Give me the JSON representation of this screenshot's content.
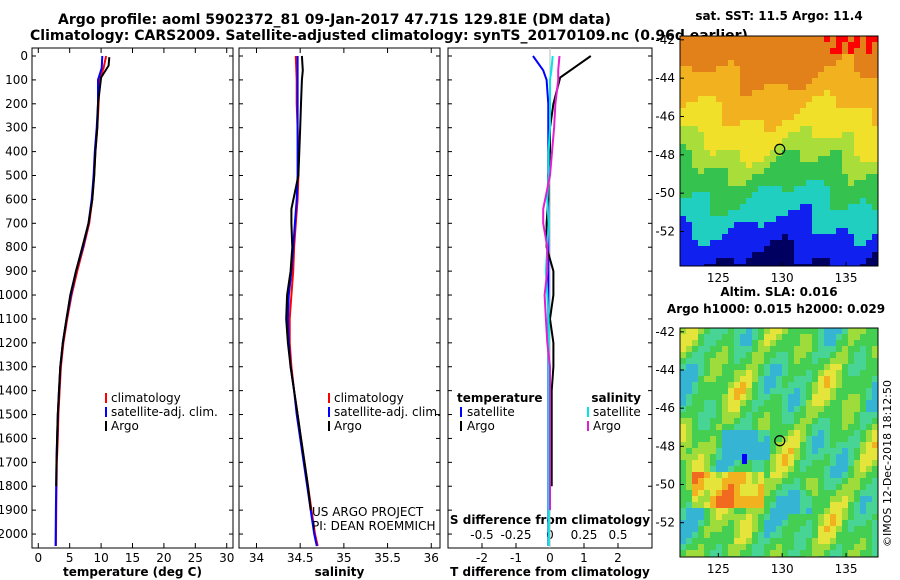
{
  "title": {
    "line1": "Argo profile: aoml 5902372_81 09-Jan-2017 47.71S 129.81E (DM data)",
    "line2": "Climatology: CARS2009. Satellite-adjusted climatology: synTS_20170109.nc (0.96d earlier)"
  },
  "colors": {
    "climatology": "#ff0000",
    "satellite": "#0000ff",
    "argo": "#000000",
    "sal_satellite": "#00e5e5",
    "sal_argo": "#e020d0"
  },
  "chart_data": [
    {
      "type": "line",
      "id": "temperature",
      "title": "",
      "xlabel": "temperature (deg C)",
      "ylabel": "",
      "xlim": [
        -1,
        31
      ],
      "ylim": [
        2060,
        0
      ],
      "xticks": [
        "0",
        "5",
        "10",
        "15",
        "20",
        "25",
        "30"
      ],
      "yticks": [
        "0",
        "100",
        "200",
        "300",
        "400",
        "500",
        "600",
        "700",
        "800",
        "900",
        "1000",
        "1100",
        "1200",
        "1300",
        "1400",
        "1500",
        "1600",
        "1700",
        "1800",
        "1900",
        "2000"
      ],
      "legend": [
        "climatology",
        "satellite-adj. clim.",
        "Argo"
      ],
      "series": [
        {
          "name": "climatology",
          "color_key": "climatology",
          "x": [
            10.8,
            10.4,
            9.7,
            9.6,
            9.4,
            9.1,
            8.9,
            8.6,
            8.1,
            7.2,
            6.2,
            5.3,
            4.6,
            4.0,
            3.6,
            3.4,
            3.2,
            3.1,
            2.95,
            2.9,
            2.85,
            2.8
          ],
          "y": [
            0,
            50,
            100,
            200,
            300,
            400,
            500,
            600,
            700,
            800,
            900,
            1000,
            1100,
            1200,
            1300,
            1400,
            1500,
            1600,
            1700,
            1800,
            1900,
            2050
          ]
        },
        {
          "name": "satellite-adj. clim.",
          "color_key": "satellite",
          "x": [
            10.2,
            10.1,
            9.5,
            9.5,
            9.3,
            9.0,
            8.8,
            8.5,
            8.0,
            7.1,
            6.0,
            5.2,
            4.5,
            3.9,
            3.5,
            3.3,
            3.1,
            3.0,
            2.9,
            2.85,
            2.8,
            2.75
          ],
          "y": [
            0,
            50,
            100,
            200,
            300,
            400,
            500,
            600,
            700,
            800,
            900,
            1000,
            1100,
            1200,
            1300,
            1400,
            1500,
            1600,
            1700,
            1800,
            1900,
            2050
          ]
        },
        {
          "name": "Argo",
          "color_key": "argo",
          "x": [
            11.3,
            11.2,
            10.0,
            9.5,
            9.4,
            9.1,
            8.9,
            8.6,
            8.0,
            7.0,
            6.0,
            5.1,
            4.5,
            3.9,
            3.5,
            3.3,
            3.1,
            3.0,
            2.9,
            2.85
          ],
          "y": [
            5,
            40,
            90,
            200,
            300,
            400,
            500,
            600,
            700,
            800,
            900,
            1000,
            1100,
            1200,
            1300,
            1400,
            1500,
            1600,
            1700,
            1800
          ]
        }
      ]
    },
    {
      "type": "line",
      "id": "salinity",
      "title": "",
      "xlabel": "salinity",
      "ylabel": "",
      "xlim": [
        33.8,
        36.1
      ],
      "ylim": [
        2060,
        0
      ],
      "xticks": [
        "34",
        "34.5",
        "35",
        "35.5",
        "36"
      ],
      "legend": [
        "climatology",
        "satellite-adj. clim.",
        "Argo"
      ],
      "series": [
        {
          "name": "climatology",
          "color_key": "climatology",
          "x": [
            34.45,
            34.46,
            34.46,
            34.47,
            34.48,
            34.48,
            34.47,
            34.45,
            34.43,
            34.42,
            34.4,
            34.38,
            34.38,
            34.4,
            34.43,
            34.47,
            34.51,
            34.55,
            34.59,
            34.63,
            34.67,
            34.7
          ],
          "y": [
            0,
            100,
            200,
            300,
            400,
            500,
            600,
            700,
            800,
            900,
            1000,
            1100,
            1200,
            1300,
            1400,
            1500,
            1600,
            1700,
            1800,
            1900,
            2000,
            2050
          ]
        },
        {
          "name": "satellite-adj. clim.",
          "color_key": "satellite",
          "x": [
            34.47,
            34.47,
            34.47,
            34.47,
            34.47,
            34.47,
            34.46,
            34.44,
            34.42,
            34.4,
            34.37,
            34.36,
            34.37,
            34.39,
            34.43,
            34.46,
            34.5,
            34.54,
            34.58,
            34.62,
            34.66,
            34.69
          ],
          "y": [
            0,
            100,
            200,
            300,
            400,
            500,
            600,
            700,
            800,
            900,
            1000,
            1100,
            1200,
            1300,
            1400,
            1500,
            1600,
            1700,
            1800,
            1900,
            2000,
            2050
          ]
        },
        {
          "name": "Argo",
          "color_key": "argo",
          "x": [
            34.52,
            34.53,
            34.52,
            34.51,
            34.5,
            34.48,
            34.4,
            34.4,
            34.41,
            34.39,
            34.35,
            34.34,
            34.36,
            34.39,
            34.43,
            34.47,
            34.51,
            34.55,
            34.59,
            34.62
          ],
          "y": [
            0,
            60,
            100,
            200,
            300,
            500,
            640,
            700,
            800,
            900,
            1000,
            1100,
            1200,
            1300,
            1400,
            1500,
            1600,
            1700,
            1800,
            1900
          ]
        }
      ]
    },
    {
      "type": "line",
      "id": "difference",
      "title": "S difference from climatology",
      "xlabel": "T difference from climatology",
      "ylabel": "",
      "xlim": [
        -3,
        3
      ],
      "ylim": [
        2060,
        0
      ],
      "xticks": [
        "-2",
        "-1",
        "0",
        "1",
        "2"
      ],
      "top_ticks": [
        "-0.5",
        "-0.25",
        "0",
        "0.25",
        "0.5"
      ],
      "top_xlim": [
        -0.75,
        0.75
      ],
      "legend": [
        "temperature",
        "satellite",
        "Argo",
        "salinity",
        "satellite",
        "Argo"
      ],
      "series": [
        {
          "name": "temperature satellite",
          "color_key": "satellite",
          "x": [
            -0.5,
            -0.2,
            -0.1,
            -0.05,
            -0.05,
            -0.05,
            -0.05,
            -0.05,
            -0.05,
            -0.05,
            -0.05,
            -0.05,
            -0.05,
            -0.05,
            -0.05,
            -0.05,
            -0.05,
            -0.05,
            -0.05
          ],
          "y": [
            0,
            60,
            100,
            200,
            300,
            400,
            500,
            600,
            700,
            800,
            900,
            1000,
            1100,
            1200,
            1300,
            1400,
            1600,
            1800,
            2050
          ]
        },
        {
          "name": "temperature Argo",
          "color_key": "argo",
          "x": [
            1.2,
            0.8,
            0.3,
            0.1,
            0.0,
            0.0,
            -0.05,
            -0.05,
            -0.1,
            -0.1,
            0.1,
            0.1,
            0.0,
            0.1,
            0.1,
            0.05,
            0.05,
            0.05
          ],
          "y": [
            0,
            40,
            90,
            200,
            300,
            400,
            500,
            600,
            700,
            800,
            900,
            1000,
            1100,
            1200,
            1300,
            1400,
            1600,
            1800
          ]
        },
        {
          "name": "salinity satellite",
          "color_key": "sal_satellite",
          "x": [
            0.02,
            0.01,
            0.0,
            0.0,
            0.0,
            -0.01,
            -0.01,
            -0.02,
            -0.01,
            -0.02,
            -0.03,
            -0.02,
            -0.01,
            -0.01,
            -0.01,
            -0.01,
            -0.01,
            -0.01,
            -0.01
          ],
          "y": [
            0,
            60,
            100,
            200,
            300,
            400,
            500,
            600,
            700,
            800,
            900,
            1000,
            1100,
            1200,
            1300,
            1400,
            1600,
            1800,
            2050
          ]
        },
        {
          "name": "salinity Argo",
          "color_key": "sal_argo",
          "x": [
            0.07,
            0.06,
            0.06,
            0.04,
            0.03,
            0.0,
            -0.05,
            -0.05,
            -0.02,
            -0.02,
            -0.04,
            -0.03,
            -0.02,
            0.0,
            0.0,
            0.0,
            0.0,
            0.0
          ],
          "y": [
            0,
            60,
            100,
            200,
            300,
            500,
            640,
            700,
            800,
            900,
            1000,
            1100,
            1200,
            1300,
            1400,
            1600,
            1800,
            1900
          ]
        }
      ]
    },
    {
      "type": "heatmap",
      "id": "sst_map",
      "title": "sat. SST: 11.5 Argo: 11.4",
      "xticks": [
        "125",
        "130",
        "135"
      ],
      "yticks": [
        "-42",
        "-44",
        "-46",
        "-48",
        "-50",
        "-52"
      ],
      "xlim": [
        122,
        137.5
      ],
      "ylim": [
        -53.8,
        -41.8
      ],
      "marker": {
        "lon": 129.81,
        "lat": -47.71
      }
    },
    {
      "type": "heatmap",
      "id": "sla_map",
      "title": "Altim. SLA: 0.016",
      "subtitle": "Argo h1000: 0.015 h2000: 0.029",
      "xticks": [
        "125",
        "130",
        "135"
      ],
      "yticks": [
        "-42",
        "-44",
        "-46",
        "-48",
        "-50",
        "-52"
      ],
      "xlim": [
        122,
        137.5
      ],
      "ylim": [
        -53.8,
        -41.8
      ],
      "marker": {
        "lon": 129.81,
        "lat": -47.71
      }
    }
  ],
  "footer": {
    "project": "US ARGO PROJECT",
    "pi": "PI: DEAN ROEMMICH",
    "credit": "©IMOS 12-Dec-2018 18:12:50"
  }
}
